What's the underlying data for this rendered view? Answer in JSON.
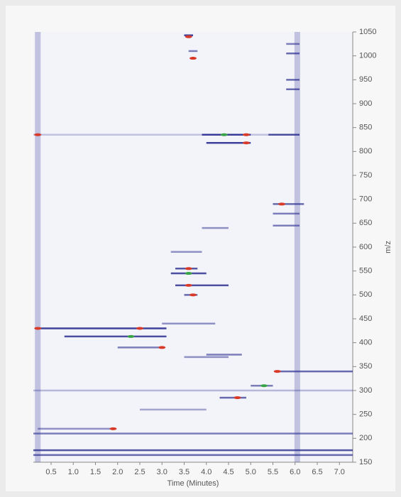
{
  "chart_data": {
    "type": "heatmap",
    "xlabel": "Time (Minutes)",
    "ylabel": "m/z",
    "xlim": [
      0.1,
      7.3
    ],
    "ylim": [
      150,
      1050
    ],
    "xticks": [
      0.5,
      1.0,
      1.5,
      2.0,
      2.5,
      3.0,
      3.5,
      4.0,
      4.5,
      5.0,
      5.5,
      6.0,
      6.5,
      7.0
    ],
    "xtick_labels": [
      "0.5",
      "1.0",
      "1.5",
      "2.0",
      "2.5",
      "3.0",
      "3.5",
      "4.0",
      "4.5",
      "5.0",
      "5.5",
      "6.0",
      "6.5",
      "7.0"
    ],
    "yticks": [
      150,
      200,
      250,
      300,
      350,
      400,
      450,
      500,
      550,
      600,
      650,
      700,
      750,
      800,
      850,
      900,
      950,
      1000,
      1050
    ],
    "color": "#2b2f8f",
    "vertical_bands": [
      0.2,
      6.05
    ],
    "streaks": {
      "start": [
        3.5,
        0.1,
        3.9,
        5.4,
        4.0,
        0.2,
        0.8,
        2.0,
        5.6,
        3.3,
        3.2,
        3.3,
        3.5,
        4.3,
        5.0,
        0.2,
        0.1,
        0.1,
        0.1,
        5.5,
        5.5,
        5.5,
        5.8,
        5.8,
        5.8,
        5.8,
        3.6,
        4.0,
        3.0,
        3.5,
        0.1,
        3.2,
        3.9,
        2.5
      ],
      "end": [
        3.7,
        6.1,
        5.0,
        6.1,
        5.0,
        3.1,
        3.1,
        3.0,
        7.3,
        3.8,
        4.0,
        4.5,
        3.8,
        4.9,
        5.5,
        1.9,
        7.3,
        7.3,
        7.3,
        6.2,
        6.1,
        6.1,
        6.1,
        6.1,
        6.1,
        6.1,
        3.8,
        4.8,
        4.2,
        4.5,
        7.3,
        3.9,
        4.5,
        4.0
      ],
      "mz": [
        1043,
        835,
        835,
        835,
        818,
        430,
        413,
        390,
        340,
        555,
        545,
        520,
        500,
        285,
        310,
        220,
        210,
        175,
        165,
        690,
        670,
        645,
        950,
        930,
        1005,
        1025,
        1010,
        375,
        440,
        370,
        300,
        590,
        640,
        260
      ],
      "intensity": [
        0.9,
        0.25,
        0.9,
        0.8,
        0.9,
        0.9,
        0.85,
        0.6,
        0.7,
        0.8,
        0.85,
        0.85,
        0.7,
        0.7,
        0.6,
        0.5,
        0.6,
        0.8,
        0.7,
        0.7,
        0.6,
        0.6,
        0.7,
        0.7,
        0.7,
        0.6,
        0.6,
        0.6,
        0.5,
        0.5,
        0.3,
        0.5,
        0.5,
        0.4
      ]
    },
    "peaks": {
      "time": [
        0.2,
        0.2,
        2.5,
        3.6,
        3.7,
        4.9,
        4.9,
        3.6,
        3.6,
        3.7,
        5.6,
        5.7,
        2.3,
        3.6,
        4.4,
        3.0,
        4.7,
        5.3,
        1.9
      ],
      "mz": [
        430,
        835,
        430,
        1040,
        995,
        835,
        818,
        555,
        520,
        500,
        340,
        690,
        413,
        545,
        835,
        390,
        285,
        310,
        220
      ],
      "colors": [
        "#d83a2a",
        "#d83a2a",
        "#d83a2a",
        "#d83a2a",
        "#d83a2a",
        "#d83a2a",
        "#d83a2a",
        "#d83a2a",
        "#d83a2a",
        "#d83a2a",
        "#d83a2a",
        "#d83a2a",
        "#3aa34a",
        "#3aa34a",
        "#3aa34a",
        "#d83a2a",
        "#d83a2a",
        "#3aa34a",
        "#d83a2a"
      ]
    }
  }
}
